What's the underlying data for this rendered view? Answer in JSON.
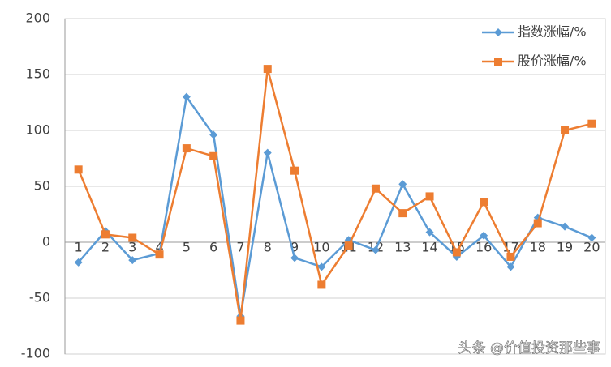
{
  "chart_data": {
    "type": "line",
    "categories": [
      1,
      2,
      3,
      4,
      5,
      6,
      7,
      8,
      9,
      10,
      11,
      12,
      13,
      14,
      15,
      16,
      17,
      18,
      19,
      20
    ],
    "series": [
      {
        "name": "指数涨幅/%",
        "color": "#5b9bd5",
        "marker": "diamond",
        "values": [
          -18,
          10,
          -16,
          -10,
          130,
          96,
          -66,
          80,
          -14,
          -22,
          2,
          -7,
          52,
          9,
          -13,
          6,
          -22,
          22,
          14,
          4
        ]
      },
      {
        "name": "股价涨幅/%",
        "color": "#ed7d31",
        "marker": "square",
        "values": [
          65,
          7,
          4,
          -11,
          84,
          77,
          -70,
          155,
          64,
          -38,
          -3,
          48,
          26,
          41,
          -9,
          36,
          -13,
          17,
          100,
          106
        ]
      }
    ],
    "ylim": [
      -100,
      200
    ],
    "yticks": [
      -100,
      -50,
      0,
      50,
      100,
      150,
      200
    ],
    "grid": true,
    "legend": "top-right",
    "watermark": "头条 @价值投资那些事"
  }
}
